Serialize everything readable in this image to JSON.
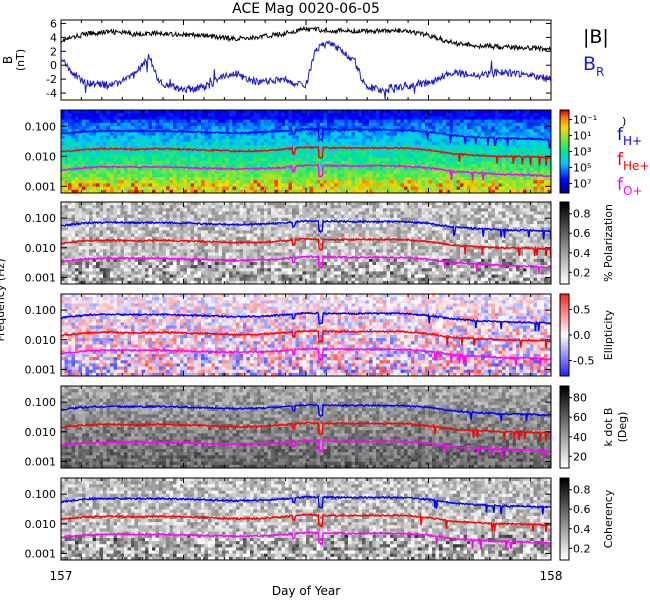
{
  "title": "ACE Mag 0020-06-05",
  "x_axis": {
    "label": "Day of Year",
    "start_label": "157",
    "end_label": "158"
  },
  "colors": {
    "btotal": "#000000",
    "br": "#1a1ad6",
    "f_hplus": "#0000ff",
    "f_heplus": "#ff0000",
    "f_oplus": "#ff00ff"
  },
  "chart_data": [
    {
      "type": "line",
      "panel": "magnetic-field",
      "ylabel": "B (nT)",
      "ylim": [
        -5,
        6.5
      ],
      "yticks": [
        "6",
        "4",
        "2",
        "0",
        "-2",
        "-4"
      ],
      "x_range": [
        157,
        158
      ],
      "series": [
        {
          "name": "|B|",
          "color": "#000000",
          "x": [
            157.0,
            157.05,
            157.1,
            157.15,
            157.2,
            157.25,
            157.3,
            157.35,
            157.4,
            157.45,
            157.5,
            157.55,
            157.6,
            157.65,
            157.7,
            157.75,
            157.8,
            157.85,
            157.9,
            157.95,
            158.0
          ],
          "values": [
            3.5,
            4.5,
            4.8,
            4.5,
            4.6,
            4.4,
            4.2,
            3.8,
            4.0,
            4.5,
            5.2,
            5.0,
            4.9,
            5.0,
            4.9,
            4.3,
            3.2,
            2.8,
            2.6,
            2.5,
            2.3
          ]
        },
        {
          "name": "B",
          "sub": "R",
          "color": "#1a1ad6",
          "x": [
            157.0,
            157.02,
            157.05,
            157.1,
            157.15,
            157.18,
            157.2,
            157.25,
            157.3,
            157.35,
            157.4,
            157.45,
            157.5,
            157.52,
            157.55,
            157.6,
            157.62,
            157.65,
            157.7,
            157.75,
            157.8,
            157.85,
            157.9,
            157.95,
            158.0
          ],
          "values": [
            1.0,
            -1.0,
            -2.5,
            -3.0,
            -1.5,
            1.5,
            -2.5,
            -3.5,
            -3.0,
            -1.0,
            -2.5,
            -2.0,
            -3.0,
            2.5,
            3.0,
            0.5,
            -3.0,
            -3.5,
            -3.0,
            -2.5,
            -1.0,
            -1.5,
            -1.0,
            -1.5,
            -2.0
          ]
        }
      ]
    },
    {
      "type": "heatmap",
      "panel": "power-spectrum",
      "ylabel": "Frequency (Hz)",
      "yscale": "log",
      "ylim": [
        0.0006,
        0.35
      ],
      "yticks": [
        "0.100",
        "0.010",
        "0.001"
      ],
      "colorbar": {
        "ticks": [
          "10⁻¹",
          "10¹",
          "10³",
          "10⁵",
          "10⁷"
        ],
        "label": ")"
      },
      "legend": [
        "f",
        "f",
        "f"
      ],
      "legend_subs": [
        "H+",
        "He+",
        "O+"
      ]
    },
    {
      "type": "heatmap",
      "panel": "polarization",
      "yscale": "log",
      "ylim": [
        0.0006,
        0.35
      ],
      "yticks": [
        "0.100",
        "0.010",
        "0.001"
      ],
      "colorbar": {
        "ticks": [
          "0.8",
          "0.6",
          "0.4",
          "0.2"
        ],
        "label": "% Polarization"
      }
    },
    {
      "type": "heatmap",
      "panel": "ellipticity",
      "yscale": "log",
      "ylim": [
        0.0006,
        0.35
      ],
      "yticks": [
        "0.100",
        "0.010",
        "0.001"
      ],
      "colorbar": {
        "ticks": [
          "0.5",
          "0.0",
          "-0.5"
        ],
        "label": "Ellipticity"
      }
    },
    {
      "type": "heatmap",
      "panel": "k-dot-b",
      "yscale": "log",
      "ylim": [
        0.0006,
        0.35
      ],
      "yticks": [
        "0.100",
        "0.010",
        "0.001"
      ],
      "colorbar": {
        "ticks": [
          "80",
          "60",
          "40",
          "20"
        ],
        "label": "k dot B",
        "label2": "(Deg)"
      }
    },
    {
      "type": "heatmap",
      "panel": "coherency",
      "yscale": "log",
      "ylim": [
        0.0006,
        0.35
      ],
      "yticks": [
        "0.100",
        "0.010",
        "0.001"
      ],
      "colorbar": {
        "ticks": [
          "0.8",
          "0.6",
          "0.4",
          "0.2"
        ],
        "label": "Coherency"
      }
    }
  ],
  "gyrofrequency_curves": {
    "x": [
      157.0,
      157.05,
      157.1,
      157.15,
      157.2,
      157.25,
      157.3,
      157.35,
      157.4,
      157.45,
      157.5,
      157.55,
      157.6,
      157.65,
      157.7,
      157.75,
      157.8,
      157.85,
      157.9,
      157.95,
      158.0
    ],
    "f_hplus": [
      0.055,
      0.068,
      0.072,
      0.07,
      0.071,
      0.068,
      0.064,
      0.06,
      0.062,
      0.068,
      0.08,
      0.078,
      0.076,
      0.077,
      0.076,
      0.066,
      0.05,
      0.044,
      0.04,
      0.039,
      0.036
    ],
    "f_heplus": [
      0.014,
      0.017,
      0.018,
      0.017,
      0.018,
      0.017,
      0.016,
      0.015,
      0.015,
      0.017,
      0.02,
      0.019,
      0.019,
      0.019,
      0.019,
      0.016,
      0.012,
      0.011,
      0.01,
      0.0097,
      0.009
    ],
    "f_oplus": [
      0.0034,
      0.0042,
      0.0045,
      0.0044,
      0.0044,
      0.0042,
      0.004,
      0.0038,
      0.0039,
      0.0042,
      0.005,
      0.0049,
      0.0047,
      0.0048,
      0.0047,
      0.0041,
      0.0031,
      0.0028,
      0.0025,
      0.0024,
      0.0022
    ]
  }
}
